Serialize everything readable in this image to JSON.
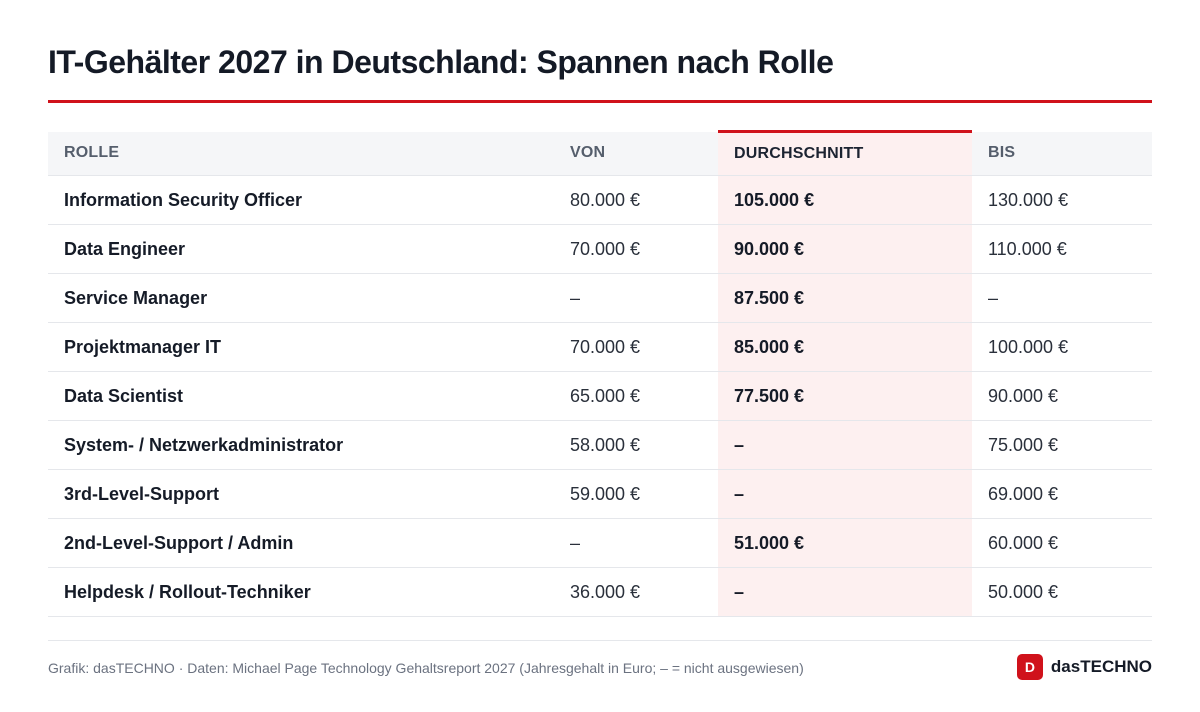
{
  "header": {
    "title": "IT-Gehälter 2027 in Deutschland: Spannen nach Rolle"
  },
  "colors": {
    "accent": "#d0121b",
    "highlight_column_bg": "#fdf0f0",
    "header_bg": "#f5f6f8"
  },
  "chart_data": {
    "type": "table",
    "title": "IT-Gehälter 2027 in Deutschland: Spannen nach Rolle",
    "columns": [
      "ROLLE",
      "VON",
      "DURCHSCHNITT",
      "BIS"
    ],
    "highlighted_column": "DURCHSCHNITT",
    "rows": [
      {
        "role": "Information Security Officer",
        "von": "80.000 €",
        "avg": "105.000 €",
        "bis": "130.000 €"
      },
      {
        "role": "Data Engineer",
        "von": "70.000 €",
        "avg": "90.000 €",
        "bis": "110.000 €"
      },
      {
        "role": "Service Manager",
        "von": "–",
        "avg": "87.500 €",
        "bis": "–"
      },
      {
        "role": "Projektmanager IT",
        "von": "70.000 €",
        "avg": "85.000 €",
        "bis": "100.000 €"
      },
      {
        "role": "Data Scientist",
        "von": "65.000 €",
        "avg": "77.500 €",
        "bis": "90.000 €"
      },
      {
        "role": "System- / Netzwerkadministrator",
        "von": "58.000 €",
        "avg": "–",
        "bis": "75.000 €"
      },
      {
        "role": "3rd-Level-Support",
        "von": "59.000 €",
        "avg": "–",
        "bis": "69.000 €"
      },
      {
        "role": "2nd-Level-Support / Admin",
        "von": "–",
        "avg": "51.000 €",
        "bis": "60.000 €"
      },
      {
        "role": "Helpdesk / Rollout-Techniker",
        "von": "36.000 €",
        "avg": "–",
        "bis": "50.000 €"
      }
    ]
  },
  "footer": {
    "source": "Grafik: dasTECHNO · Daten: Michael Page Technology Gehaltsreport 2027 (Jahresgehalt in Euro; – = nicht ausgewiesen)",
    "brand_icon_letter": "D",
    "brand_name": "dasTECHNO",
    "brand_icon": "brand-logo-icon"
  }
}
